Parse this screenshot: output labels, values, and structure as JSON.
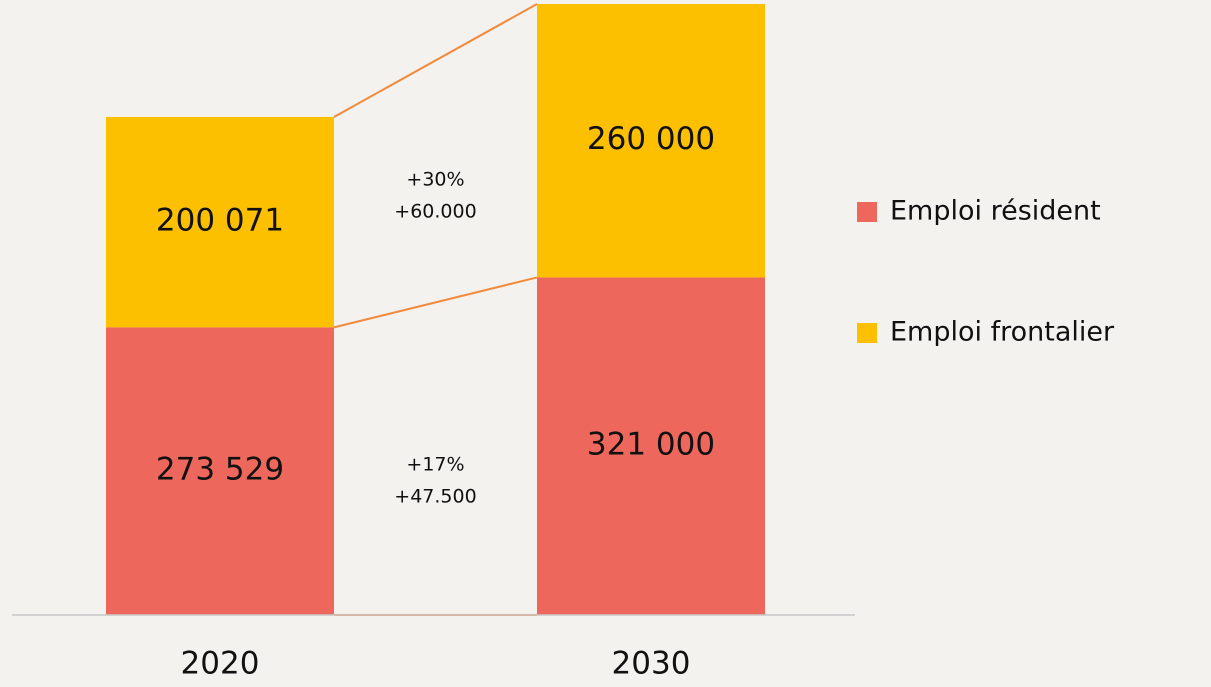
{
  "chart_data": {
    "type": "stacked-bar",
    "categories": [
      "2020",
      "2030"
    ],
    "series": [
      {
        "name": "Emploi résident",
        "color": "#ee675c",
        "values": [
          273529,
          321000
        ],
        "value_labels": [
          "273 529",
          "321 000"
        ]
      },
      {
        "name": "Emploi frontalier",
        "color": "#fdc000",
        "values": [
          200071,
          260000
        ],
        "value_labels": [
          "200 071",
          "260 000"
        ]
      }
    ],
    "annotations": [
      [
        "+17%",
        "+47.500"
      ],
      [
        "+30%",
        "+60.000"
      ]
    ],
    "connector_color": "#f28a3c",
    "legend": "right"
  }
}
